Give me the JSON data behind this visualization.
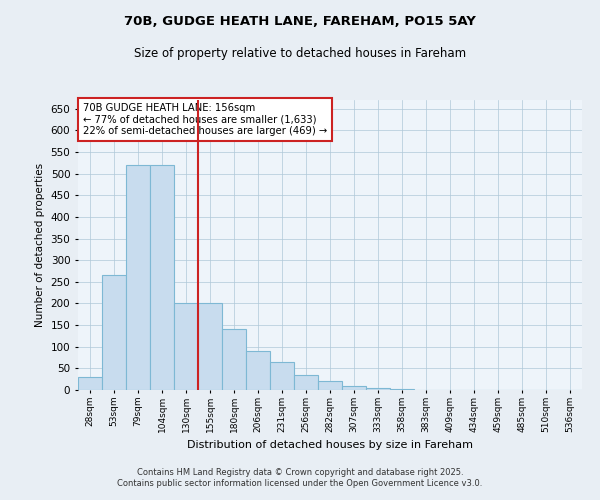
{
  "title1": "70B, GUDGE HEATH LANE, FAREHAM, PO15 5AY",
  "title2": "Size of property relative to detached houses in Fareham",
  "xlabel": "Distribution of detached houses by size in Fareham",
  "ylabel": "Number of detached properties",
  "bin_labels": [
    "28sqm",
    "53sqm",
    "79sqm",
    "104sqm",
    "130sqm",
    "155sqm",
    "180sqm",
    "206sqm",
    "231sqm",
    "256sqm",
    "282sqm",
    "307sqm",
    "333sqm",
    "358sqm",
    "383sqm",
    "409sqm",
    "434sqm",
    "459sqm",
    "485sqm",
    "510sqm",
    "536sqm"
  ],
  "bar_values": [
    30,
    265,
    520,
    520,
    200,
    200,
    140,
    90,
    65,
    35,
    20,
    10,
    5,
    2,
    1,
    1,
    0,
    0,
    0,
    0,
    0
  ],
  "bar_color": "#C8DCEE",
  "bar_edge_color": "#7EB8D4",
  "vline_x": 4.5,
  "vline_color": "#CC2222",
  "annotation_title": "70B GUDGE HEATH LANE: 156sqm",
  "annotation_line2": "← 77% of detached houses are smaller (1,633)",
  "annotation_line3": "22% of semi-detached houses are larger (469) →",
  "annotation_box_color": "#CC2222",
  "ylim": [
    0,
    670
  ],
  "yticks": [
    0,
    50,
    100,
    150,
    200,
    250,
    300,
    350,
    400,
    450,
    500,
    550,
    600,
    650
  ],
  "footer1": "Contains HM Land Registry data © Crown copyright and database right 2025.",
  "footer2": "Contains public sector information licensed under the Open Government Licence v3.0.",
  "bg_color": "#E8EEF4",
  "plot_bg_color": "#EEF4FA"
}
